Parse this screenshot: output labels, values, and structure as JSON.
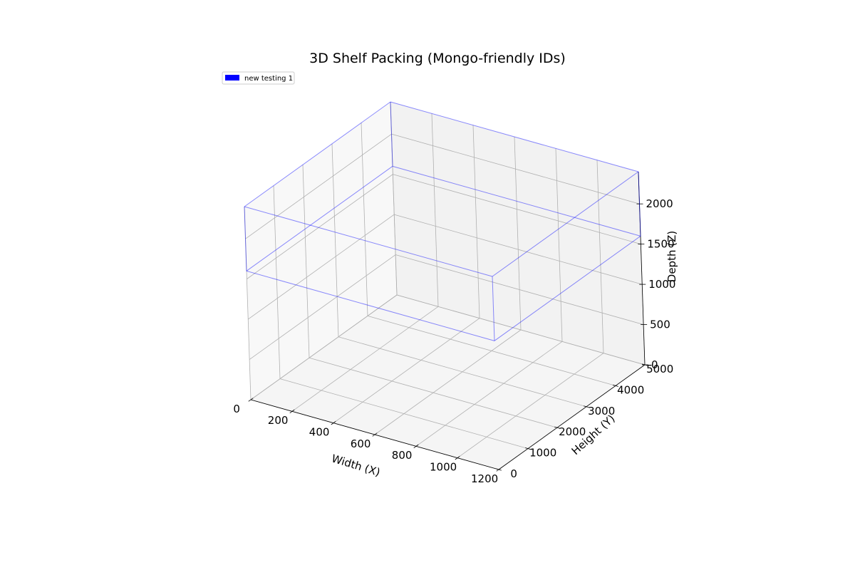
{
  "chart_data": {
    "type": "3d-box",
    "title": "3D Shelf Packing (Mongo-friendly IDs)",
    "xlabel": "Width (X)",
    "ylabel": "Height (Y)",
    "zlabel": "Depth (Z)",
    "xlim": [
      0,
      1200
    ],
    "ylim": [
      0,
      5000
    ],
    "zlim": [
      0,
      2400
    ],
    "xticks": [
      0,
      200,
      400,
      600,
      800,
      1000,
      1200
    ],
    "yticks": [
      0,
      1000,
      2000,
      3000,
      4000,
      5000
    ],
    "zticks": [
      0,
      500,
      1000,
      1500,
      2000
    ],
    "grid": true,
    "legend_position": "top-left",
    "series": [
      {
        "name": "new testing 1",
        "color": "#0000ff",
        "box": {
          "x": [
            0,
            1200
          ],
          "y": [
            0,
            5000
          ],
          "z": [
            1600,
            2400
          ]
        }
      }
    ]
  }
}
